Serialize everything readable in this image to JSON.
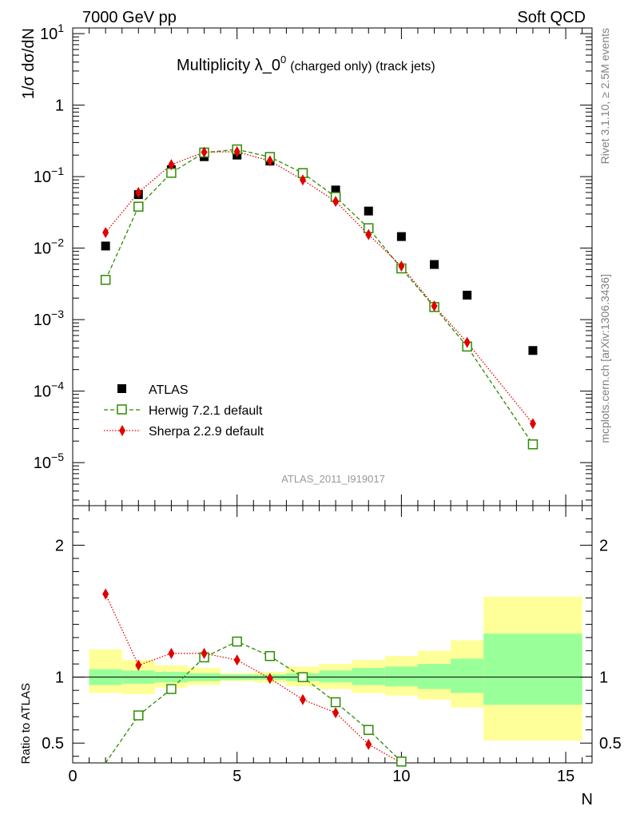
{
  "header": {
    "left": "7000 GeV pp",
    "right": "Soft QCD"
  },
  "side_labels": {
    "rivet": "Rivet 3.1.10, ≥ 2.5M events",
    "mcplots": "mcplots.cern.ch [arXiv:1306.3436]"
  },
  "chart_data": {
    "type": "scatter",
    "title": "Multiplicity λ_0",
    "title_sup": "0",
    "title_suffix": "(charged only) (track jets)",
    "watermark": "ATLAS_2011_I919017",
    "xlabel": "N",
    "ylabel": "1/σ dσ/dN",
    "ratio_ylabel": "Ratio to ATLAS",
    "xlim": [
      0,
      15.8
    ],
    "ylim": [
      2.5e-06,
      12
    ],
    "yscale": "log",
    "ratio_ylim": [
      0.35,
      2.3
    ],
    "x_ticks": [
      "0",
      "5",
      "10",
      "15"
    ],
    "y_ticks": [
      {
        "base": "10",
        "exp": "1",
        "v": 10
      },
      {
        "base": "1",
        "exp": "",
        "v": 1
      },
      {
        "base": "10",
        "exp": "−1",
        "v": 0.1
      },
      {
        "base": "10",
        "exp": "−2",
        "v": 0.01
      },
      {
        "base": "10",
        "exp": "−3",
        "v": 0.001
      },
      {
        "base": "10",
        "exp": "−4",
        "v": 0.0001
      },
      {
        "base": "10",
        "exp": "−5",
        "v": 1e-05
      }
    ],
    "ratio_ticks": [
      "0.5",
      "1",
      "2"
    ],
    "legend_position": "bottom-left",
    "series": [
      {
        "name": "ATLAS",
        "color": "#000000",
        "marker": "square-filled",
        "x": [
          1,
          2,
          3,
          4,
          5,
          6,
          7,
          8,
          9,
          10,
          11,
          12,
          14
        ],
        "y": [
          0.0107,
          0.056,
          0.125,
          0.19,
          0.2,
          0.165,
          0.112,
          0.065,
          0.033,
          0.0145,
          0.0059,
          0.0022,
          0.00037
        ]
      },
      {
        "name": "Herwig 7.2.1 default",
        "color": "#2e8b00",
        "marker": "square-open",
        "line": "dashed",
        "x": [
          1,
          2,
          3,
          4,
          5,
          6,
          7,
          8,
          9,
          10,
          11,
          12,
          14
        ],
        "y": [
          0.0036,
          0.038,
          0.113,
          0.217,
          0.24,
          0.188,
          0.112,
          0.052,
          0.019,
          0.0052,
          0.0015,
          0.00042,
          1.8e-05
        ]
      },
      {
        "name": "Sherpa 2.2.9 default",
        "color": "#e00000",
        "marker": "diamond-filled",
        "line": "dotted",
        "x": [
          1,
          2,
          3,
          4,
          5,
          6,
          7,
          8,
          9,
          10,
          11,
          12,
          14
        ],
        "y": [
          0.0165,
          0.06,
          0.147,
          0.22,
          0.223,
          0.166,
          0.09,
          0.045,
          0.0155,
          0.0056,
          0.00155,
          0.00048,
          3.5e-05
        ]
      }
    ],
    "ratio_series": [
      {
        "name": "Herwig 7.2.1 default",
        "x": [
          1,
          2,
          3,
          4,
          5,
          6,
          7,
          8,
          9,
          10
        ],
        "y": [
          0.33,
          0.71,
          0.91,
          1.15,
          1.27,
          1.16,
          1.0,
          0.81,
          0.6,
          0.36
        ]
      },
      {
        "name": "Sherpa 2.2.9 default",
        "x": [
          1,
          2,
          3,
          4,
          5,
          6,
          7,
          8,
          9,
          10
        ],
        "y": [
          1.63,
          1.09,
          1.18,
          1.18,
          1.13,
          0.99,
          0.83,
          0.73,
          0.49,
          0.35
        ]
      }
    ],
    "ratio_bands": [
      {
        "x0": 0.5,
        "x1": 1.5,
        "inner": [
          0.94,
          1.06
        ],
        "outer": [
          0.88,
          1.21
        ]
      },
      {
        "x0": 1.5,
        "x1": 2.5,
        "inner": [
          0.95,
          1.05
        ],
        "outer": [
          0.87,
          1.13
        ]
      },
      {
        "x0": 2.5,
        "x1": 3.5,
        "inner": [
          0.96,
          1.04
        ],
        "outer": [
          0.92,
          1.09
        ]
      },
      {
        "x0": 3.5,
        "x1": 4.5,
        "inner": [
          0.97,
          1.03
        ],
        "outer": [
          0.94,
          1.07
        ]
      },
      {
        "x0": 4.5,
        "x1": 5.5,
        "inner": [
          0.98,
          1.02
        ],
        "outer": [
          0.97,
          1.03
        ]
      },
      {
        "x0": 5.5,
        "x1": 6.5,
        "inner": [
          0.98,
          1.02
        ],
        "outer": [
          0.96,
          1.04
        ]
      },
      {
        "x0": 6.5,
        "x1": 7.5,
        "inner": [
          0.97,
          1.03
        ],
        "outer": [
          0.93,
          1.08
        ]
      },
      {
        "x0": 7.5,
        "x1": 8.5,
        "inner": [
          0.96,
          1.05
        ],
        "outer": [
          0.91,
          1.1
        ]
      },
      {
        "x0": 8.5,
        "x1": 9.5,
        "inner": [
          0.94,
          1.07
        ],
        "outer": [
          0.88,
          1.13
        ]
      },
      {
        "x0": 9.5,
        "x1": 10.5,
        "inner": [
          0.93,
          1.08
        ],
        "outer": [
          0.86,
          1.16
        ]
      },
      {
        "x0": 10.5,
        "x1": 11.5,
        "inner": [
          0.91,
          1.1
        ],
        "outer": [
          0.83,
          1.2
        ]
      },
      {
        "x0": 11.5,
        "x1": 12.5,
        "inner": [
          0.88,
          1.14
        ],
        "outer": [
          0.77,
          1.28
        ]
      },
      {
        "x0": 12.5,
        "x1": 15.5,
        "inner": [
          0.79,
          1.33
        ],
        "outer": [
          0.52,
          1.61
        ]
      }
    ]
  }
}
